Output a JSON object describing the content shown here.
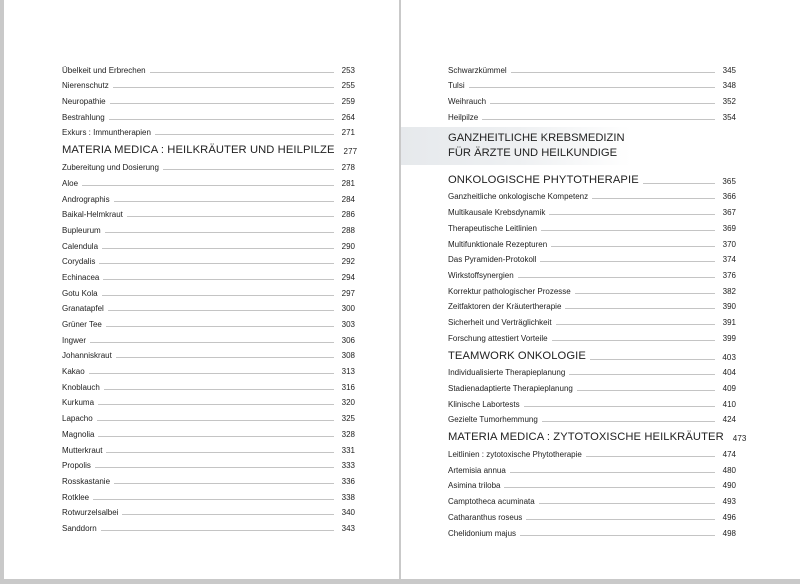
{
  "left_page": {
    "entries": [
      {
        "label": "Übelkeit und Erbrechen",
        "page": "253",
        "heading": false
      },
      {
        "label": "Nierenschutz",
        "page": "255",
        "heading": false
      },
      {
        "label": "Neuropathie",
        "page": "259",
        "heading": false
      },
      {
        "label": "Bestrahlung",
        "page": "264",
        "heading": false
      },
      {
        "label": "Exkurs : Immuntherapien",
        "page": "271",
        "heading": false
      },
      {
        "label": "MATERIA MEDICA : HEILKRÄUTER UND HEILPILZE",
        "page": "277",
        "heading": true
      },
      {
        "label": "Zubereitung und Dosierung",
        "page": "278",
        "heading": false
      },
      {
        "label": "Aloe",
        "page": "281",
        "heading": false
      },
      {
        "label": "Andrographis",
        "page": "284",
        "heading": false
      },
      {
        "label": "Baikal-Helmkraut",
        "page": "286",
        "heading": false
      },
      {
        "label": "Bupleurum",
        "page": "288",
        "heading": false
      },
      {
        "label": "Calendula",
        "page": "290",
        "heading": false
      },
      {
        "label": "Corydalis",
        "page": "292",
        "heading": false
      },
      {
        "label": "Echinacea",
        "page": "294",
        "heading": false
      },
      {
        "label": "Gotu Kola",
        "page": "297",
        "heading": false
      },
      {
        "label": "Granatapfel",
        "page": "300",
        "heading": false
      },
      {
        "label": "Grüner Tee",
        "page": "303",
        "heading": false
      },
      {
        "label": "Ingwer",
        "page": "306",
        "heading": false
      },
      {
        "label": "Johanniskraut",
        "page": "308",
        "heading": false
      },
      {
        "label": "Kakao",
        "page": "313",
        "heading": false
      },
      {
        "label": "Knoblauch",
        "page": "316",
        "heading": false
      },
      {
        "label": "Kurkuma",
        "page": "320",
        "heading": false
      },
      {
        "label": "Lapacho",
        "page": "325",
        "heading": false
      },
      {
        "label": "Magnolia",
        "page": "328",
        "heading": false
      },
      {
        "label": "Mutterkraut",
        "page": "331",
        "heading": false
      },
      {
        "label": "Propolis",
        "page": "333",
        "heading": false
      },
      {
        "label": "Rosskastanie",
        "page": "336",
        "heading": false
      },
      {
        "label": "Rotklee",
        "page": "338",
        "heading": false
      },
      {
        "label": "Rotwurzelsalbei",
        "page": "340",
        "heading": false
      },
      {
        "label": "Sanddorn",
        "page": "343",
        "heading": false
      }
    ]
  },
  "right_page": {
    "entries_top": [
      {
        "label": "Schwarzkümmel",
        "page": "345",
        "heading": false
      },
      {
        "label": "Tulsi",
        "page": "348",
        "heading": false
      },
      {
        "label": "Weihrauch",
        "page": "352",
        "heading": false
      },
      {
        "label": "Heilpilze",
        "page": "354",
        "heading": false
      }
    ],
    "part_title": [
      "GANZHEITLICHE KREBSMEDIZIN",
      "FÜR ÄRZTE UND HEILKUNDIGE"
    ],
    "entries": [
      {
        "label": "ONKOLOGISCHE PHYTOTHERAPIE",
        "page": "365",
        "heading": true
      },
      {
        "label": "Ganzheitliche onkologische Kompetenz",
        "page": "366",
        "heading": false
      },
      {
        "label": "Multikausale Krebsdynamik",
        "page": "367",
        "heading": false
      },
      {
        "label": "Therapeutische Leitlinien",
        "page": "369",
        "heading": false
      },
      {
        "label": "Multifunktionale Rezepturen",
        "page": "370",
        "heading": false
      },
      {
        "label": "Das Pyramiden-Protokoll",
        "page": "374",
        "heading": false
      },
      {
        "label": "Wirkstoffsynergien",
        "page": "376",
        "heading": false
      },
      {
        "label": "Korrektur pathologischer Prozesse",
        "page": "382",
        "heading": false
      },
      {
        "label": "Zeitfaktoren der Kräutertherapie",
        "page": "390",
        "heading": false
      },
      {
        "label": "Sicherheit und Verträglichkeit",
        "page": "391",
        "heading": false
      },
      {
        "label": "Forschung attestiert Vorteile",
        "page": "399",
        "heading": false
      },
      {
        "label": "TEAMWORK ONKOLOGIE",
        "page": "403",
        "heading": true
      },
      {
        "label": "Individualisierte Therapieplanung",
        "page": "404",
        "heading": false
      },
      {
        "label": "Stadienadaptierte Therapieplanung",
        "page": "409",
        "heading": false
      },
      {
        "label": "Klinische Labortests",
        "page": "410",
        "heading": false
      },
      {
        "label": "Gezielte Tumorhemmung",
        "page": "424",
        "heading": false
      },
      {
        "label": "MATERIA MEDICA : ZYTOTOXISCHE HEILKRÄUTER",
        "page": "473",
        "heading": true
      },
      {
        "label": "Leitlinien : zytotoxische Phytotherapie",
        "page": "474",
        "heading": false
      },
      {
        "label": "Artemisia annua",
        "page": "480",
        "heading": false
      },
      {
        "label": "Asimina triloba",
        "page": "490",
        "heading": false
      },
      {
        "label": "Camptotheca acuminata",
        "page": "493",
        "heading": false
      },
      {
        "label": "Catharanthus roseus",
        "page": "496",
        "heading": false
      },
      {
        "label": "Chelidonium majus",
        "page": "498",
        "heading": false
      }
    ]
  }
}
